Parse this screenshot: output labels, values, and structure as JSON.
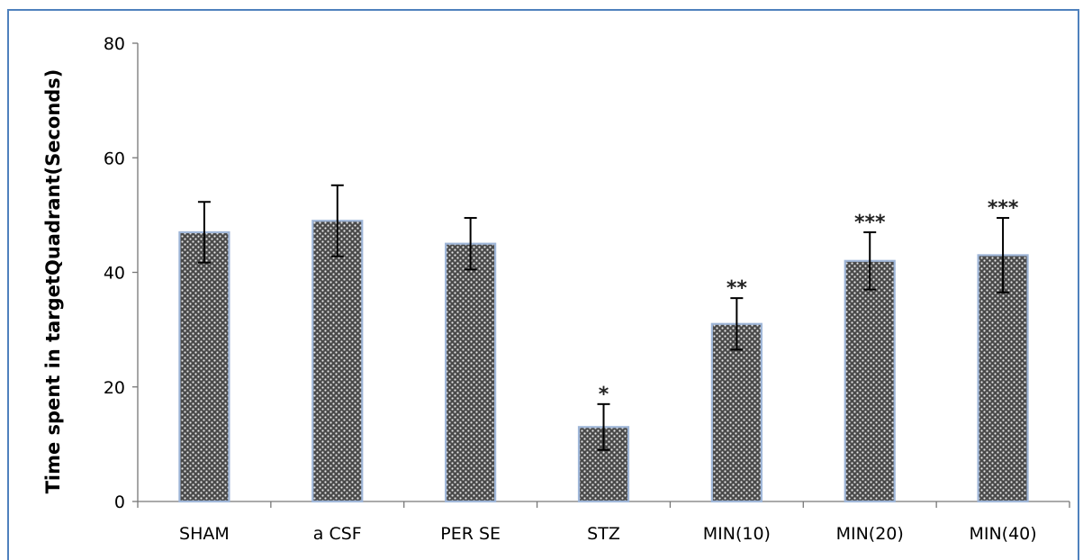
{
  "caption": "",
  "chart_data": {
    "type": "bar",
    "categories": [
      "SHAM",
      "a CSF",
      "PER SE",
      "STZ",
      "MIN(10)",
      "MIN(20)",
      "MIN(40)"
    ],
    "values": [
      47,
      49,
      45,
      13,
      31,
      42,
      43
    ],
    "errors": [
      5.3,
      6.2,
      4.5,
      4,
      4.5,
      5,
      6.5
    ],
    "significance": [
      "",
      "",
      "",
      "*",
      "**",
      "***",
      "***"
    ],
    "ylabel": "Time spent in targetQuadrant(Seconds)",
    "xlabel": "",
    "ylim": [
      0,
      80
    ],
    "yticks": [
      "0",
      "20",
      "40",
      "60",
      "80"
    ],
    "bar_fill": "#555555",
    "bar_outline": "#9fb6d8",
    "frame_color": "#4f81bd",
    "grid": false,
    "legend": "none"
  }
}
